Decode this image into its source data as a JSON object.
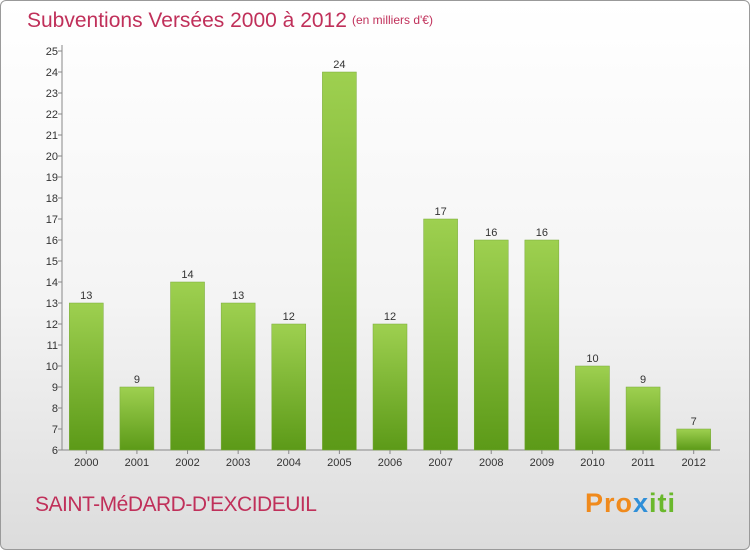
{
  "title": "Subventions Versées 2000 à 2012",
  "subtitle": "(en milliers d'€)",
  "commune": "SAINT-MéDARD-D'EXCIDEUIL",
  "logo": {
    "part1": "Pro",
    "part2": "x",
    "part3": "iti"
  },
  "colors": {
    "title": "#c0305a",
    "bar_top": "#9ed050",
    "bar_bottom": "#5c9a18"
  },
  "chart_data": {
    "type": "bar",
    "title": "Subventions Versées 2000 à 2012",
    "subtitle": "(en milliers d'€)",
    "xlabel": "",
    "ylabel": "",
    "categories": [
      "2000",
      "2001",
      "2002",
      "2003",
      "2004",
      "2005",
      "2006",
      "2007",
      "2008",
      "2009",
      "2010",
      "2011",
      "2012"
    ],
    "values": [
      13,
      9,
      14,
      13,
      12,
      24,
      12,
      17,
      16,
      16,
      10,
      9,
      7
    ],
    "ylim": [
      6,
      25
    ],
    "yticks": [
      "6",
      "7",
      "8",
      "9",
      "10",
      "11",
      "12",
      "13",
      "14",
      "15",
      "16",
      "17",
      "18",
      "19",
      "20",
      "21",
      "22",
      "23",
      "24",
      "25"
    ],
    "grid": false,
    "legend": "none"
  }
}
